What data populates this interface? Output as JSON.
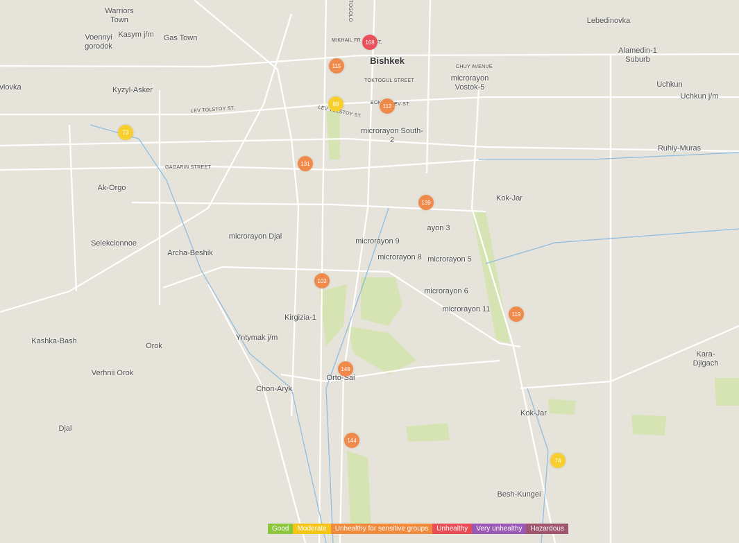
{
  "places": [
    "Warriors Town",
    "Kasym j/m",
    "Gas Town",
    "Voennyi gorodok",
    "Lebedinovka",
    "Alamedin-1 Suburb",
    "Bishkek",
    "microrayon Vostok-5",
    "Uchkun",
    "Uchkun j/m",
    "vlovka",
    "Kyzyl-Asker",
    "microrayon South-2",
    "Ruhiy-Muras",
    "Ak-Orgo",
    "Kok-Jar",
    "ayon 3",
    "Selekcionnoe",
    "Archa-Beshik",
    "microrayon Djal",
    "microrayon 9",
    "microrayon 8",
    "microrayon 5",
    "microrayon 6",
    "microrayon 11",
    "Kirgizia-1",
    "Kashka-Bash",
    "Orok",
    "Yntymak j/m",
    "Kara-Djigach",
    "Verhnii Orok",
    "Chon-Aryk",
    "Orto-Sai",
    "Kok-Jar",
    "Djal",
    "Besh-Kungei"
  ],
  "streets": [
    "TOGOLO",
    "MIKHAIL FR",
    "ST.",
    "CHUY AVENUE",
    "TOKTOGUL STREET",
    "BOKO",
    "EV ST.",
    "LEV TOLSTOY ST.",
    "LEV TOLSTOY ST.",
    "GAGARIN STREET"
  ],
  "markers": [
    {
      "value": "168",
      "color": "#e8505b"
    },
    {
      "value": "115",
      "color": "#f08a4b"
    },
    {
      "value": "89",
      "color": "#f7cf2e"
    },
    {
      "value": "112",
      "color": "#f08a4b"
    },
    {
      "value": "73",
      "color": "#f7cf2e"
    },
    {
      "value": "131",
      "color": "#f08a4b"
    },
    {
      "value": "139",
      "color": "#f08a4b"
    },
    {
      "value": "103",
      "color": "#f08a4b"
    },
    {
      "value": "119",
      "color": "#f08a4b"
    },
    {
      "value": "149",
      "color": "#f08a4b"
    },
    {
      "value": "144",
      "color": "#f08a4b"
    },
    {
      "value": "74",
      "color": "#f7cf2e"
    }
  ],
  "legend": [
    {
      "label": "Good",
      "color": "#8cc63f"
    },
    {
      "label": "Moderate",
      "color": "#f5c518"
    },
    {
      "label": "Unhealthy for sensitive groups",
      "color": "#f08a3c"
    },
    {
      "label": "Unhealthy",
      "color": "#e84e55"
    },
    {
      "label": "Very unhealthy",
      "color": "#9b59b6"
    },
    {
      "label": "Hazardous",
      "color": "#a0566e"
    }
  ]
}
